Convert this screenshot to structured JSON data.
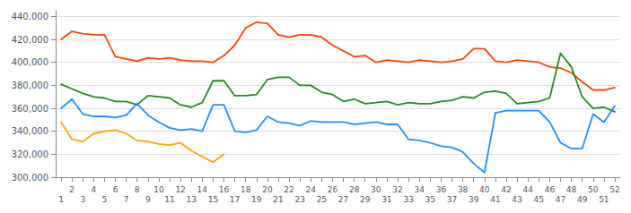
{
  "chart_data": {
    "type": "line",
    "x": [
      1,
      2,
      3,
      4,
      5,
      6,
      7,
      8,
      9,
      10,
      11,
      12,
      13,
      14,
      15,
      16,
      17,
      18,
      19,
      20,
      21,
      22,
      23,
      24,
      25,
      26,
      27,
      28,
      29,
      30,
      31,
      32,
      33,
      34,
      35,
      36,
      37,
      38,
      39,
      40,
      41,
      42,
      43,
      44,
      45,
      46,
      47,
      48,
      49,
      50,
      51,
      52
    ],
    "xlim": [
      0.5,
      52.5
    ],
    "xticks": [
      1,
      2,
      3,
      4,
      5,
      6,
      7,
      8,
      9,
      10,
      11,
      12,
      13,
      14,
      15,
      16,
      17,
      18,
      19,
      20,
      21,
      22,
      23,
      24,
      25,
      26,
      27,
      28,
      29,
      30,
      31,
      32,
      33,
      34,
      35,
      36,
      37,
      38,
      39,
      40,
      41,
      42,
      43,
      44,
      45,
      46,
      47,
      48,
      49,
      50,
      51,
      52
    ],
    "ylim": [
      300000,
      445000
    ],
    "yticks": [
      {
        "value": 300000,
        "label": "300,000"
      },
      {
        "value": 320000,
        "label": "320,000"
      },
      {
        "value": 340000,
        "label": "340,000"
      },
      {
        "value": 360000,
        "label": "360,000"
      },
      {
        "value": 380000,
        "label": "380,000"
      },
      {
        "value": 400000,
        "label": "400,000"
      },
      {
        "value": 420000,
        "label": "420,000"
      },
      {
        "value": 440000,
        "label": "440,000"
      }
    ],
    "grid": true,
    "series": [
      {
        "color": "#FFA500",
        "values": [
          348000,
          333000,
          331000,
          338000,
          340000,
          341000,
          338000,
          332000,
          331000,
          329000,
          328000,
          330000,
          323000,
          318000,
          313000,
          320000,
          null,
          null,
          null,
          null,
          null,
          null,
          null,
          null,
          null,
          null,
          null,
          null,
          null,
          null,
          null,
          null,
          null,
          null,
          null,
          null,
          null,
          null,
          null,
          null,
          null,
          null,
          null,
          null,
          null,
          null,
          null,
          null,
          null,
          null,
          null,
          null
        ]
      },
      {
        "color": "#FF4500",
        "values": [
          420000,
          427000,
          425000,
          424000,
          424000,
          405000,
          403000,
          401000,
          404000,
          403000,
          404000,
          402000,
          401000,
          401000,
          400000,
          406000,
          415000,
          430000,
          435000,
          434000,
          424000,
          422000,
          424000,
          424000,
          422000,
          415000,
          410000,
          405000,
          406000,
          400000,
          402000,
          401000,
          400000,
          402000,
          401000,
          400000,
          401000,
          403000,
          412000,
          412000,
          401000,
          400000,
          402000,
          401000,
          400000,
          396000,
          395000,
          391000,
          383000,
          376000,
          376000,
          378000
        ]
      },
      {
        "color": "#228B22",
        "values": [
          381000,
          377000,
          373000,
          370000,
          369000,
          366000,
          366000,
          363000,
          371000,
          370000,
          369000,
          363000,
          361000,
          365000,
          384000,
          384000,
          371000,
          371000,
          372000,
          385000,
          387000,
          387000,
          380000,
          380000,
          374000,
          372000,
          366000,
          368000,
          364000,
          365000,
          366000,
          363000,
          365000,
          364000,
          364000,
          366000,
          367000,
          370000,
          369000,
          374000,
          375000,
          373000,
          364000,
          365000,
          366000,
          369000,
          408000,
          396000,
          370000,
          360000,
          361000,
          357000
        ]
      },
      {
        "color": "#1E90FF",
        "values": [
          360000,
          368000,
          355000,
          353000,
          353000,
          352000,
          354000,
          364000,
          354000,
          348000,
          343000,
          341000,
          342000,
          340000,
          363000,
          363000,
          340000,
          339000,
          341000,
          353000,
          348000,
          347000,
          345000,
          349000,
          348000,
          348000,
          348000,
          346000,
          347000,
          348000,
          346000,
          346000,
          333000,
          332000,
          330000,
          327000,
          326000,
          322000,
          312000,
          304000,
          356000,
          358000,
          358000,
          358000,
          358000,
          348000,
          330000,
          325000,
          325000,
          355000,
          348000,
          362000
        ]
      }
    ]
  }
}
